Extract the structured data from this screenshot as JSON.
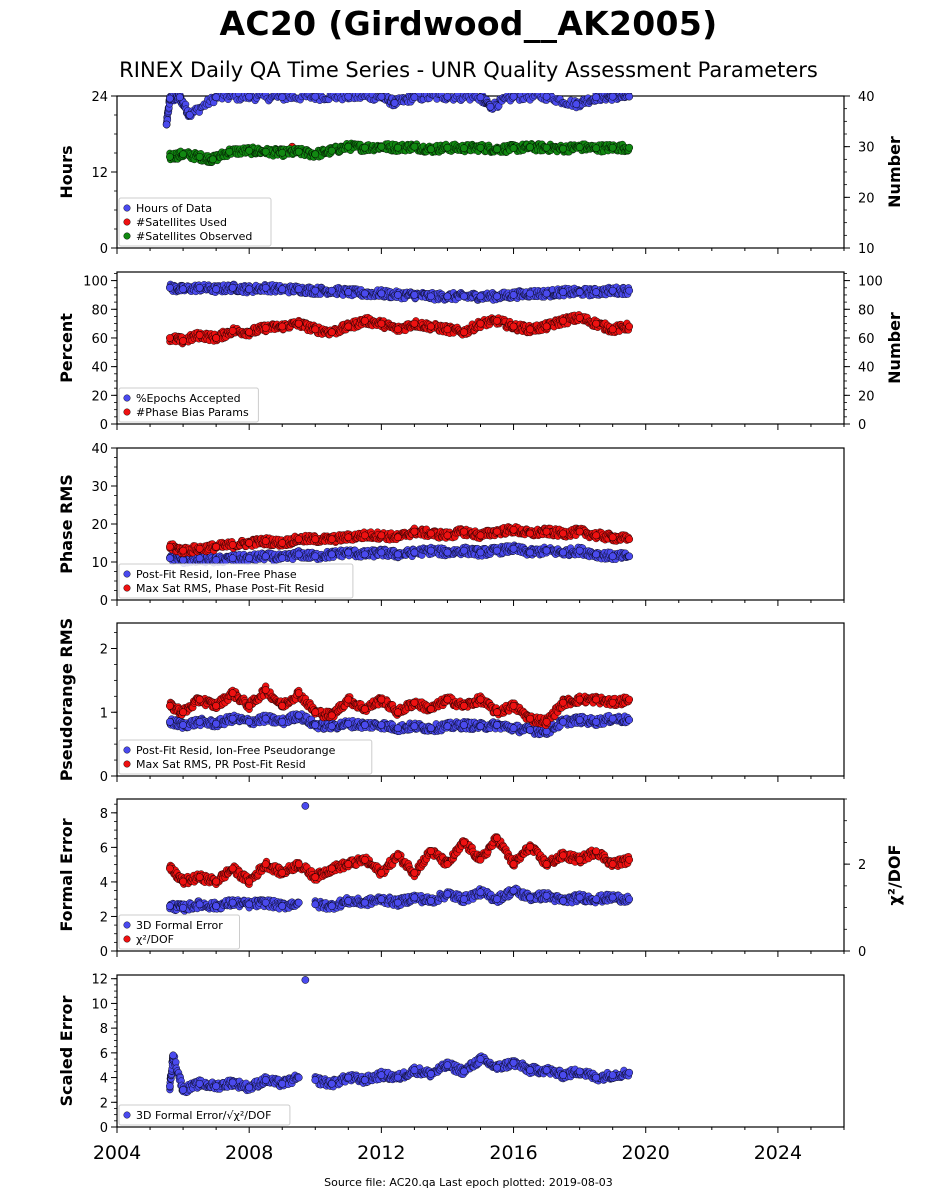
{
  "title": "AC20 (Girdwood__AK2005)",
  "subtitle": "RINEX Daily QA Time Series - UNR Quality Assessment Parameters",
  "footer": "Source file: AC20.qa Last epoch plotted: 2019-08-03",
  "colors": {
    "blue": "#4a4aee",
    "red": "#ee1111",
    "green": "#118811",
    "edge": "#000000"
  },
  "chart_data": [
    {
      "type": "scatter",
      "x_range": [
        2004,
        2026
      ],
      "x_ticks": [
        2004,
        2008,
        2012,
        2016,
        2020,
        2024
      ],
      "ylabel": "Hours",
      "ylim": [
        0,
        24
      ],
      "y_ticks": [
        0,
        12,
        24
      ],
      "y2label": "Number",
      "y2lim": [
        10,
        40
      ],
      "y2_ticks": [
        10,
        20,
        30,
        40
      ],
      "legend_position": "lower-left",
      "series": [
        {
          "name": "Hours of Data",
          "color": "blue",
          "axis": "left",
          "x": [
            2005.5,
            2005.6,
            2005.9,
            2006.2,
            2007.0,
            2008.0,
            2009.0,
            2010.0,
            2011.0,
            2012.0,
            2012.4,
            2013.0,
            2014.0,
            2015.0,
            2015.3,
            2016.0,
            2017.0,
            2017.9,
            2018.5,
            2019.0,
            2019.5
          ],
          "y": [
            19.5,
            23.6,
            23.8,
            21.0,
            23.8,
            23.9,
            23.8,
            23.9,
            23.9,
            23.9,
            22.9,
            23.8,
            23.9,
            23.8,
            22.3,
            23.9,
            23.9,
            22.7,
            23.8,
            23.9,
            23.9
          ]
        },
        {
          "name": "#Satellites Used",
          "color": "red",
          "axis": "right",
          "x": [
            2009.3
          ],
          "y": [
            30.0
          ]
        },
        {
          "name": "#Satellites Observed",
          "color": "green",
          "axis": "right",
          "x": [
            2005.6,
            2006.0,
            2006.5,
            2006.9,
            2007.4,
            2008.0,
            2008.5,
            2009.0,
            2009.5,
            2010.0,
            2010.5,
            2011.0,
            2011.5,
            2012.0,
            2012.5,
            2013.0,
            2013.5,
            2014.0,
            2014.5,
            2015.0,
            2015.5,
            2016.0,
            2016.5,
            2017.0,
            2017.5,
            2018.0,
            2018.5,
            2019.0,
            2019.5
          ],
          "y": [
            28.0,
            28.5,
            28.0,
            27.5,
            29.0,
            29.2,
            29.0,
            28.8,
            29.0,
            28.5,
            29.2,
            30.0,
            29.8,
            30.0,
            29.8,
            30.0,
            29.5,
            29.8,
            29.7,
            29.8,
            29.5,
            29.7,
            29.9,
            29.8,
            29.6,
            29.9,
            29.7,
            29.8,
            29.8
          ]
        }
      ]
    },
    {
      "type": "scatter",
      "x_range": [
        2004,
        2026
      ],
      "x_ticks": [
        2004,
        2008,
        2012,
        2016,
        2020,
        2024
      ],
      "ylabel": "Percent",
      "ylim": [
        0,
        106
      ],
      "y_ticks": [
        0,
        20,
        40,
        60,
        80,
        100
      ],
      "y2label": "Number",
      "y2lim": [
        0,
        106
      ],
      "y2_ticks": [
        0,
        20,
        40,
        60,
        80,
        100
      ],
      "legend_position": "lower-left",
      "series": [
        {
          "name": "%Epochs Accepted",
          "color": "blue",
          "axis": "left",
          "x": [
            2005.6,
            2006.0,
            2006.5,
            2007.0,
            2007.5,
            2008.0,
            2008.5,
            2009.0,
            2009.5,
            2010.0,
            2010.5,
            2011.0,
            2011.5,
            2012.0,
            2012.5,
            2013.0,
            2013.5,
            2014.0,
            2014.5,
            2015.0,
            2015.5,
            2016.0,
            2016.5,
            2017.0,
            2017.5,
            2018.0,
            2018.5,
            2019.0,
            2019.5
          ],
          "y": [
            95,
            94,
            95,
            94,
            95,
            94,
            95,
            94,
            94,
            93,
            93,
            92,
            91,
            91,
            90,
            90,
            89,
            89,
            89,
            89,
            89,
            90,
            91,
            91,
            92,
            92,
            92,
            93,
            93
          ]
        },
        {
          "name": "#Phase Bias Params",
          "color": "red",
          "axis": "right",
          "x": [
            2005.6,
            2006.0,
            2006.5,
            2007.0,
            2007.5,
            2008.0,
            2008.5,
            2009.0,
            2009.5,
            2010.0,
            2010.5,
            2011.0,
            2011.5,
            2012.0,
            2012.5,
            2013.0,
            2013.5,
            2014.0,
            2014.5,
            2015.0,
            2015.5,
            2016.0,
            2016.5,
            2017.0,
            2017.5,
            2018.0,
            2018.5,
            2019.0,
            2019.5
          ],
          "y": [
            60,
            58,
            62,
            60,
            65,
            64,
            67,
            68,
            70,
            66,
            64,
            68,
            72,
            70,
            66,
            70,
            68,
            66,
            64,
            70,
            72,
            68,
            66,
            68,
            72,
            74,
            70,
            66,
            68
          ]
        }
      ]
    },
    {
      "type": "scatter",
      "x_range": [
        2004,
        2026
      ],
      "x_ticks": [
        2004,
        2008,
        2012,
        2016,
        2020,
        2024
      ],
      "ylabel": "Phase RMS",
      "ylim": [
        0,
        40
      ],
      "y_ticks": [
        0,
        10,
        20,
        30,
        40
      ],
      "legend_position": "lower-left",
      "series": [
        {
          "name": "Post-Fit Resid, Ion-Free Phase",
          "color": "blue",
          "axis": "left",
          "x": [
            2005.6,
            2006.0,
            2006.5,
            2007.0,
            2007.5,
            2008.0,
            2008.5,
            2009.0,
            2009.5,
            2010.0,
            2010.5,
            2011.0,
            2011.5,
            2012.0,
            2012.5,
            2013.0,
            2013.5,
            2014.0,
            2014.5,
            2015.0,
            2015.5,
            2016.0,
            2016.5,
            2017.0,
            2017.5,
            2018.0,
            2018.5,
            2019.0,
            2019.5
          ],
          "y": [
            11,
            10.5,
            11,
            10.5,
            11,
            11,
            11.5,
            11,
            12,
            11.5,
            12,
            12.5,
            12,
            12.5,
            12,
            12.5,
            13,
            12.5,
            13,
            12.5,
            13,
            13.5,
            12.5,
            13,
            12.5,
            13,
            12,
            11.5,
            11.5
          ]
        },
        {
          "name": "Max Sat RMS, Phase Post-Fit Resid",
          "color": "red",
          "axis": "left",
          "x": [
            2005.6,
            2006.0,
            2006.5,
            2007.0,
            2007.5,
            2008.0,
            2008.5,
            2009.0,
            2009.5,
            2010.0,
            2010.5,
            2011.0,
            2011.5,
            2012.0,
            2012.5,
            2013.0,
            2013.5,
            2014.0,
            2014.5,
            2015.0,
            2015.5,
            2016.0,
            2016.5,
            2017.0,
            2017.5,
            2018.0,
            2018.5,
            2019.0,
            2019.5
          ],
          "y": [
            14,
            13,
            13.5,
            14,
            14.5,
            15,
            15.5,
            15,
            16,
            16,
            16,
            16.5,
            17,
            17,
            16.5,
            18,
            17.5,
            17,
            18,
            17,
            18,
            18.5,
            17.5,
            18,
            17.5,
            18,
            17,
            16.5,
            16
          ]
        }
      ]
    },
    {
      "type": "scatter",
      "x_range": [
        2004,
        2026
      ],
      "x_ticks": [
        2004,
        2008,
        2012,
        2016,
        2020,
        2024
      ],
      "ylabel": "Pseudorange RMS",
      "ylim": [
        0,
        2.4
      ],
      "y_ticks": [
        0,
        1,
        2
      ],
      "legend_position": "lower-left",
      "series": [
        {
          "name": "Post-Fit Resid, Ion-Free Pseudorange",
          "color": "blue",
          "axis": "left",
          "x": [
            2005.6,
            2006.0,
            2006.5,
            2007.0,
            2007.5,
            2008.0,
            2008.5,
            2009.0,
            2009.5,
            2010.0,
            2010.5,
            2011.0,
            2011.5,
            2012.0,
            2012.5,
            2013.0,
            2013.5,
            2014.0,
            2014.5,
            2015.0,
            2015.5,
            2016.0,
            2016.5,
            2017.0,
            2017.5,
            2018.0,
            2018.5,
            2019.0,
            2019.5
          ],
          "y": [
            0.85,
            0.8,
            0.85,
            0.82,
            0.9,
            0.85,
            0.9,
            0.85,
            0.95,
            0.8,
            0.78,
            0.82,
            0.8,
            0.8,
            0.75,
            0.78,
            0.75,
            0.78,
            0.8,
            0.78,
            0.8,
            0.75,
            0.72,
            0.7,
            0.85,
            0.88,
            0.85,
            0.9,
            0.88
          ]
        },
        {
          "name": "Max Sat RMS, PR Post-Fit Resid",
          "color": "red",
          "axis": "left",
          "x": [
            2005.6,
            2006.0,
            2006.5,
            2007.0,
            2007.5,
            2008.0,
            2008.5,
            2009.0,
            2009.5,
            2010.0,
            2010.5,
            2011.0,
            2011.5,
            2012.0,
            2012.5,
            2013.0,
            2013.5,
            2014.0,
            2014.5,
            2015.0,
            2015.5,
            2016.0,
            2016.5,
            2017.0,
            2017.5,
            2018.0,
            2018.5,
            2019.0,
            2019.5
          ],
          "y": [
            1.1,
            1.0,
            1.2,
            1.1,
            1.3,
            1.1,
            1.35,
            1.1,
            1.3,
            1.0,
            0.95,
            1.2,
            1.05,
            1.2,
            1.0,
            1.15,
            1.05,
            1.2,
            1.1,
            1.2,
            1.0,
            1.1,
            0.9,
            0.85,
            1.15,
            1.2,
            1.2,
            1.15,
            1.2
          ]
        }
      ]
    },
    {
      "type": "scatter",
      "x_range": [
        2004,
        2026
      ],
      "x_ticks": [
        2004,
        2008,
        2012,
        2016,
        2020,
        2024
      ],
      "ylabel": "Formal Error",
      "ylim": [
        0,
        8.8
      ],
      "y_ticks": [
        0,
        2,
        4,
        6,
        8
      ],
      "y2label": "χ²/DOF",
      "y2lim": [
        0,
        3.5
      ],
      "y2_ticks": [
        0,
        2
      ],
      "legend_position": "lower-left",
      "series": [
        {
          "name": "3D Formal Error",
          "color": "blue",
          "axis": "left",
          "x": [
            2005.6,
            2006.0,
            2006.5,
            2007.0,
            2007.5,
            2008.0,
            2008.5,
            2009.0,
            2009.5,
            2009.7,
            2010.0,
            2010.5,
            2011.0,
            2011.5,
            2012.0,
            2012.5,
            2013.0,
            2013.5,
            2014.0,
            2014.5,
            2015.0,
            2015.5,
            2016.0,
            2016.5,
            2017.0,
            2017.5,
            2018.0,
            2018.5,
            2019.0,
            2019.5
          ],
          "y": [
            2.6,
            2.5,
            2.7,
            2.6,
            2.8,
            2.7,
            2.8,
            2.6,
            2.8,
            8.4,
            2.7,
            2.6,
            2.9,
            2.8,
            3.0,
            2.8,
            3.1,
            2.9,
            3.3,
            3.0,
            3.4,
            3.0,
            3.5,
            3.1,
            3.2,
            2.9,
            3.1,
            3.0,
            3.1,
            3.0
          ]
        },
        {
          "name": "χ²/DOF",
          "color": "red",
          "axis": "right",
          "x": [
            2005.6,
            2006.0,
            2006.5,
            2007.0,
            2007.5,
            2008.0,
            2008.5,
            2009.0,
            2009.5,
            2010.0,
            2010.5,
            2011.0,
            2011.5,
            2012.0,
            2012.5,
            2013.0,
            2013.5,
            2014.0,
            2014.5,
            2015.0,
            2015.5,
            2016.0,
            2016.5,
            2017.0,
            2017.5,
            2018.0,
            2018.5,
            2019.0,
            2019.5
          ],
          "y": [
            1.9,
            1.6,
            1.7,
            1.6,
            1.9,
            1.6,
            2.0,
            1.8,
            2.0,
            1.7,
            1.9,
            2.0,
            2.1,
            1.8,
            2.2,
            1.8,
            2.3,
            2.0,
            2.5,
            2.1,
            2.6,
            2.0,
            2.4,
            2.0,
            2.2,
            2.1,
            2.3,
            2.0,
            2.1
          ]
        }
      ]
    },
    {
      "type": "scatter",
      "x_range": [
        2004,
        2026
      ],
      "x_ticks": [
        2004,
        2008,
        2012,
        2016,
        2020,
        2024
      ],
      "ylabel": "Scaled Error",
      "ylim": [
        0,
        12.3
      ],
      "y_ticks": [
        0,
        2,
        4,
        6,
        8,
        10,
        12
      ],
      "legend_position": "lower-left",
      "series": [
        {
          "name": "3D Formal Error/√χ²/DOF",
          "color": "blue",
          "axis": "left",
          "x": [
            2005.6,
            2005.7,
            2006.0,
            2006.5,
            2007.0,
            2007.5,
            2008.0,
            2008.5,
            2009.0,
            2009.5,
            2009.7,
            2010.0,
            2010.5,
            2011.0,
            2011.5,
            2012.0,
            2012.5,
            2013.0,
            2013.5,
            2014.0,
            2014.5,
            2015.0,
            2015.5,
            2016.0,
            2016.5,
            2017.0,
            2017.5,
            2018.0,
            2018.5,
            2019.0,
            2019.5
          ],
          "y": [
            3.3,
            5.8,
            3.0,
            3.5,
            3.3,
            3.6,
            3.2,
            3.8,
            3.5,
            4.0,
            11.9,
            3.8,
            3.5,
            4.0,
            3.8,
            4.2,
            4.0,
            4.6,
            4.3,
            5.0,
            4.5,
            5.5,
            4.8,
            5.2,
            4.6,
            4.6,
            4.2,
            4.5,
            4.0,
            4.2,
            4.4
          ]
        }
      ]
    }
  ]
}
